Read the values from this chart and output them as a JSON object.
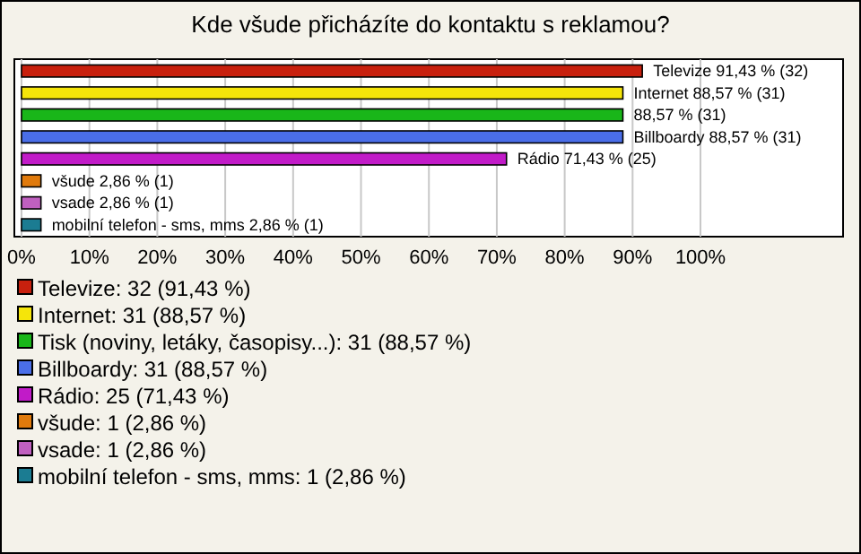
{
  "chart_data": {
    "type": "bar",
    "orientation": "horizontal",
    "title": "Kde všude přicházíte do kontaktu s reklamou?",
    "categories": [
      null,
      null,
      null,
      null,
      null,
      null,
      null,
      null
    ],
    "series": [
      {
        "name": "Televize: 32 (91,43 %)",
        "color": "#c8200e",
        "values": [
          91.43,
          null,
          null,
          null,
          null,
          null,
          null,
          null
        ],
        "value_labels": [
          "Televize 91,43 % (32)",
          null,
          null,
          null,
          null,
          null,
          null,
          null
        ]
      },
      {
        "name": "Internet: 31 (88,57 %)",
        "color": "#f5e50a",
        "values": [
          null,
          88.57,
          null,
          null,
          null,
          null,
          null,
          null
        ],
        "value_labels": [
          null,
          "Internet 88,57 % (31)",
          null,
          null,
          null,
          null,
          null,
          null
        ]
      },
      {
        "name": "Tisk (noviny, letáky, časopisy...): 31 (88,57 %)",
        "color": "#19b619",
        "values": [
          null,
          null,
          88.57,
          null,
          null,
          null,
          null,
          null
        ],
        "value_labels": [
          null,
          null,
          "88,57 % (31)",
          null,
          null,
          null,
          null,
          null
        ]
      },
      {
        "name": "Billboardy: 31 (88,57 %)",
        "color": "#4a6ee8",
        "values": [
          null,
          null,
          null,
          88.57,
          null,
          null,
          null,
          null
        ],
        "value_labels": [
          null,
          null,
          null,
          "Billboardy 88,57 % (31)",
          null,
          null,
          null,
          null
        ]
      },
      {
        "name": "Rádio: 25 (71,43 %)",
        "color": "#c11bc8",
        "values": [
          null,
          null,
          null,
          null,
          71.43,
          null,
          null,
          null
        ],
        "value_labels": [
          null,
          null,
          null,
          null,
          "Rádio 71,43 % (25)",
          null,
          null,
          null
        ]
      },
      {
        "name": "všude: 1 (2,86 %)",
        "color": "#e07a0c",
        "values": [
          null,
          null,
          null,
          null,
          null,
          2.86,
          null,
          null
        ],
        "value_labels": [
          null,
          null,
          null,
          null,
          null,
          "všude 2,86 % (1)",
          null,
          null
        ]
      },
      {
        "name": "vsade: 1 (2,86 %)",
        "color": "#c060c0",
        "values": [
          null,
          null,
          null,
          null,
          null,
          null,
          2.86,
          null
        ],
        "value_labels": [
          null,
          null,
          null,
          null,
          null,
          null,
          "vsade 2,86 % (1)",
          null
        ]
      },
      {
        "name": "mobilní telefon - sms, mms: 1 (2,86 %)",
        "color": "#1b7c92",
        "values": [
          null,
          null,
          null,
          null,
          null,
          null,
          null,
          2.86
        ],
        "value_labels": [
          null,
          null,
          null,
          null,
          null,
          null,
          null,
          "mobilní telefon - sms, mms 2,86 % (1)"
        ]
      }
    ],
    "xlim": [
      0,
      121
    ],
    "xticks": [
      {
        "value": 0,
        "label": "0%"
      },
      {
        "value": 10,
        "label": "10%"
      },
      {
        "value": 20,
        "label": "20%"
      },
      {
        "value": 30,
        "label": "30%"
      },
      {
        "value": 40,
        "label": "40%"
      },
      {
        "value": 50,
        "label": "50%"
      },
      {
        "value": 60,
        "label": "60%"
      },
      {
        "value": 70,
        "label": "70%"
      },
      {
        "value": 80,
        "label": "80%"
      },
      {
        "value": 90,
        "label": "90%"
      },
      {
        "value": 100,
        "label": "100%"
      }
    ],
    "grid": "x",
    "legend": "bottom"
  }
}
